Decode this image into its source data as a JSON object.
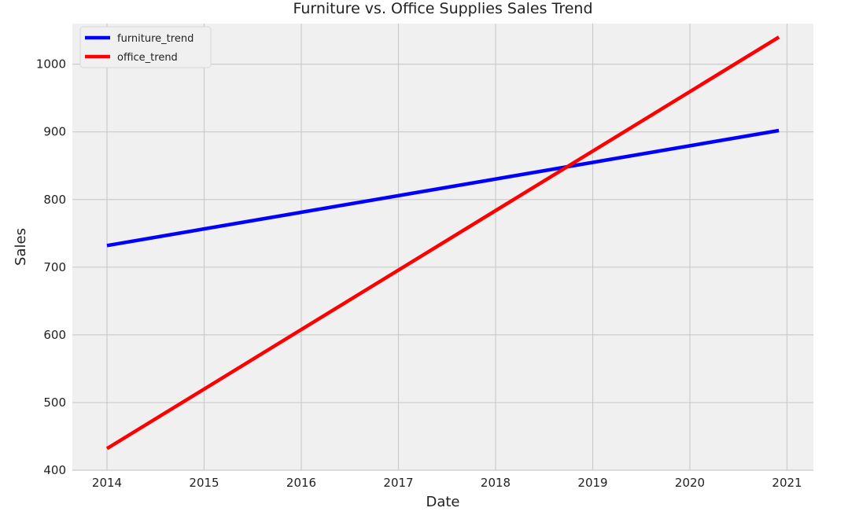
{
  "chart_data": {
    "type": "line",
    "title": "Furniture vs. Office Supplies Sales Trend",
    "xlabel": "Date",
    "ylabel": "Sales",
    "x_ticks": [
      "2014",
      "2015",
      "2016",
      "2017",
      "2018",
      "2019",
      "2020",
      "2021"
    ],
    "y_ticks": [
      "400",
      "500",
      "600",
      "700",
      "800",
      "900",
      "1000"
    ],
    "xlim": [
      "2013-08",
      "2021-04"
    ],
    "ylim": [
      400,
      1060
    ],
    "grid": true,
    "legend_position": "top-left",
    "series": [
      {
        "name": "furniture_trend",
        "color": "#0000ff",
        "x": [
          "2014-01",
          "2020-12"
        ],
        "y": [
          732,
          902
        ]
      },
      {
        "name": "office_trend",
        "color": "#ff0000",
        "x": [
          "2014-01",
          "2020-12"
        ],
        "y": [
          432,
          1040
        ]
      }
    ]
  }
}
